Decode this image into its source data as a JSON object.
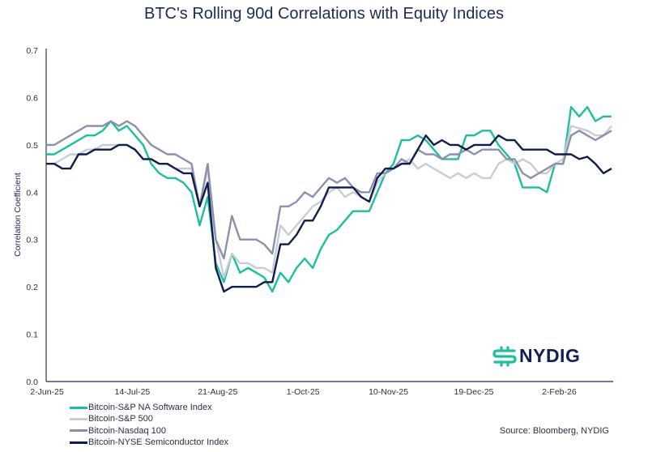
{
  "chart_data": {
    "type": "line",
    "title": "BTC's Rolling 90d Correlations with Equity Indices",
    "ylabel": "Correlation Coefficient",
    "xlabel": "",
    "ylim": [
      0.0,
      0.7
    ],
    "yticks": [
      "0.0",
      "0.1",
      "0.2",
      "0.3",
      "0.4",
      "0.5",
      "0.6",
      "0.7"
    ],
    "xticks": [
      "2-Jun-25",
      "14-Jul-25",
      "21-Aug-25",
      "1-Oct-25",
      "10-Nov-25",
      "19-Dec-25",
      "2-Feb-26"
    ],
    "grid": false,
    "legend_position": "bottom-left",
    "series": [
      {
        "name": "Bitcoin-S&P NA Software Index",
        "color": "#1dbf9f",
        "values": [
          0.48,
          0.48,
          0.49,
          0.5,
          0.51,
          0.52,
          0.52,
          0.53,
          0.55,
          0.53,
          0.54,
          0.52,
          0.5,
          0.46,
          0.44,
          0.43,
          0.43,
          0.42,
          0.4,
          0.33,
          0.39,
          0.25,
          0.21,
          0.27,
          0.23,
          0.24,
          0.23,
          0.22,
          0.19,
          0.23,
          0.21,
          0.24,
          0.26,
          0.24,
          0.28,
          0.31,
          0.32,
          0.34,
          0.36,
          0.36,
          0.36,
          0.4,
          0.44,
          0.46,
          0.51,
          0.51,
          0.52,
          0.51,
          0.49,
          0.47,
          0.47,
          0.47,
          0.52,
          0.52,
          0.53,
          0.53,
          0.5,
          0.48,
          0.46,
          0.41,
          0.41,
          0.41,
          0.4,
          0.46,
          0.46,
          0.58,
          0.56,
          0.58,
          0.55,
          0.56,
          0.56
        ]
      },
      {
        "name": "Bitcoin-S&P 500",
        "color": "#c9ccd8",
        "values": [
          0.46,
          0.46,
          0.47,
          0.48,
          0.48,
          0.49,
          0.49,
          0.5,
          0.5,
          0.5,
          0.5,
          0.49,
          0.47,
          0.47,
          0.46,
          0.46,
          0.45,
          0.45,
          0.45,
          0.37,
          0.45,
          0.3,
          0.22,
          0.27,
          0.25,
          0.25,
          0.24,
          0.24,
          0.23,
          0.33,
          0.31,
          0.33,
          0.35,
          0.37,
          0.38,
          0.4,
          0.41,
          0.39,
          0.4,
          0.39,
          0.38,
          0.42,
          0.44,
          0.45,
          0.46,
          0.47,
          0.45,
          0.46,
          0.45,
          0.44,
          0.43,
          0.44,
          0.43,
          0.44,
          0.43,
          0.43,
          0.46,
          0.47,
          0.46,
          0.47,
          0.46,
          0.44,
          0.44,
          0.46,
          0.47,
          0.54,
          0.535,
          0.53,
          0.52,
          0.52,
          0.54
        ]
      },
      {
        "name": "Bitcoin-Nasdaq 100",
        "color": "#8b91ad",
        "values": [
          0.5,
          0.5,
          0.51,
          0.52,
          0.53,
          0.54,
          0.54,
          0.54,
          0.55,
          0.54,
          0.55,
          0.54,
          0.52,
          0.5,
          0.49,
          0.48,
          0.48,
          0.47,
          0.46,
          0.37,
          0.46,
          0.3,
          0.26,
          0.35,
          0.3,
          0.3,
          0.3,
          0.29,
          0.27,
          0.37,
          0.37,
          0.38,
          0.4,
          0.39,
          0.41,
          0.43,
          0.42,
          0.43,
          0.41,
          0.4,
          0.4,
          0.44,
          0.44,
          0.45,
          0.47,
          0.46,
          0.49,
          0.48,
          0.48,
          0.47,
          0.48,
          0.48,
          0.49,
          0.48,
          0.49,
          0.49,
          0.49,
          0.47,
          0.47,
          0.44,
          0.43,
          0.44,
          0.45,
          0.46,
          0.46,
          0.52,
          0.53,
          0.52,
          0.51,
          0.52,
          0.53
        ]
      },
      {
        "name": "Bitcoin-NYSE Semiconductor Index",
        "color": "#0f1c4d",
        "values": [
          0.46,
          0.46,
          0.45,
          0.45,
          0.48,
          0.48,
          0.49,
          0.49,
          0.49,
          0.5,
          0.5,
          0.49,
          0.47,
          0.47,
          0.46,
          0.46,
          0.45,
          0.44,
          0.44,
          0.37,
          0.42,
          0.24,
          0.19,
          0.2,
          0.2,
          0.2,
          0.2,
          0.21,
          0.21,
          0.29,
          0.29,
          0.31,
          0.34,
          0.34,
          0.37,
          0.41,
          0.41,
          0.41,
          0.41,
          0.39,
          0.38,
          0.43,
          0.45,
          0.45,
          0.46,
          0.46,
          0.49,
          0.52,
          0.5,
          0.51,
          0.5,
          0.5,
          0.49,
          0.5,
          0.5,
          0.5,
          0.52,
          0.51,
          0.51,
          0.49,
          0.49,
          0.49,
          0.49,
          0.48,
          0.48,
          0.48,
          0.47,
          0.475,
          0.46,
          0.44,
          0.45
        ]
      }
    ],
    "source": "Source: Bloomberg, NYDIG"
  },
  "logo": {
    "text": "NYDIG",
    "color": "#1dbf9f"
  }
}
